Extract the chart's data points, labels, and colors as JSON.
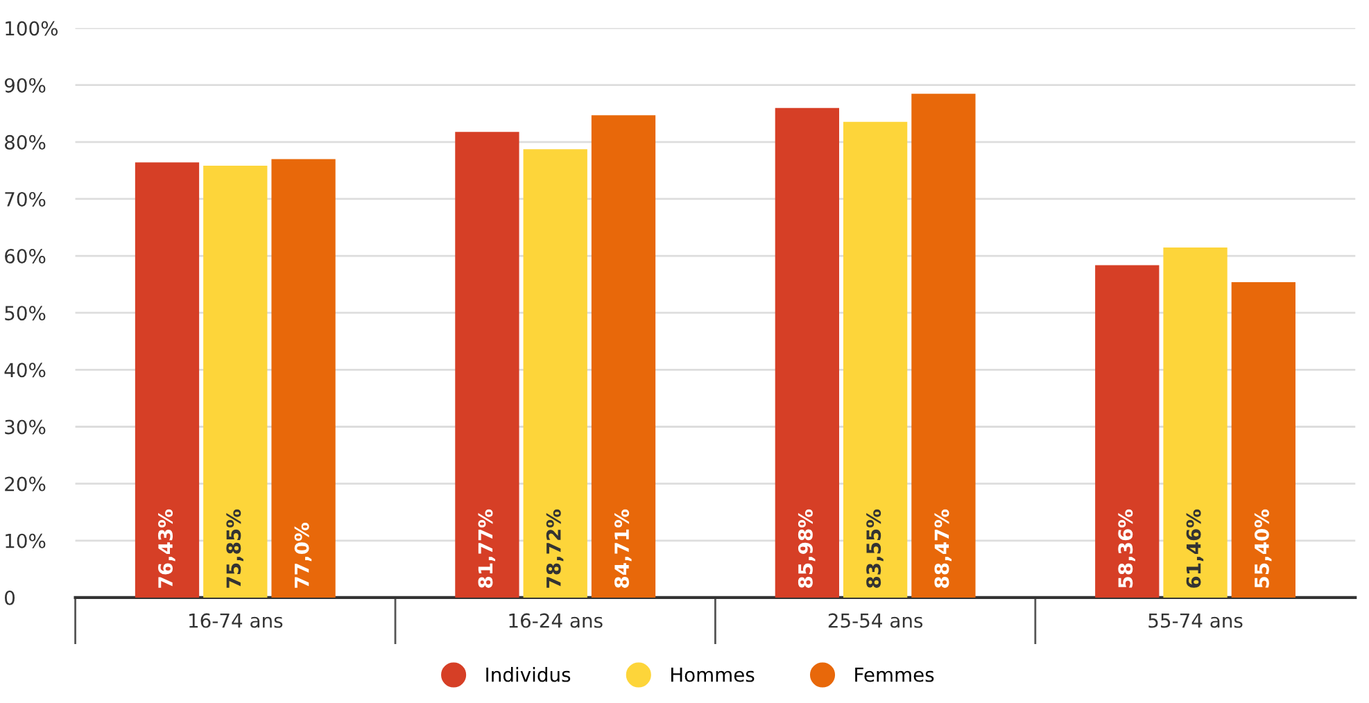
{
  "chart_data": {
    "type": "bar",
    "categories": [
      "16-74 ans",
      "16-24 ans",
      "25-54 ans",
      "55-74 ans"
    ],
    "series": [
      {
        "name": "Individus",
        "color": "#d63f26",
        "values": [
          76.43,
          81.77,
          85.98,
          58.36
        ],
        "value_labels": [
          "76,43%",
          "81,77%",
          "85,98%",
          "58,36%"
        ]
      },
      {
        "name": "Hommes",
        "color": "#fdd53a",
        "values": [
          75.85,
          78.72,
          83.55,
          61.46
        ],
        "value_labels": [
          "75,85%",
          "78,72%",
          "83,55%",
          "61,46%"
        ]
      },
      {
        "name": "Femmes",
        "color": "#e8680a",
        "values": [
          77.0,
          84.71,
          88.47,
          55.4
        ],
        "value_labels": [
          "77,0%",
          "84,71%",
          "88,47%",
          "55,40%"
        ]
      }
    ],
    "ylim": [
      0,
      100
    ],
    "yticks": [
      {
        "value": 0,
        "label": "0"
      },
      {
        "value": 10,
        "label": "10%"
      },
      {
        "value": 20,
        "label": "20%"
      },
      {
        "value": 30,
        "label": "30%"
      },
      {
        "value": 40,
        "label": "40%"
      },
      {
        "value": 50,
        "label": "50%"
      },
      {
        "value": 60,
        "label": "60%"
      },
      {
        "value": 70,
        "label": "70%"
      },
      {
        "value": 80,
        "label": "80%"
      },
      {
        "value": 90,
        "label": "90%"
      },
      {
        "value": 100,
        "label": "100%"
      }
    ],
    "grid": "y",
    "legend": "bottom"
  }
}
